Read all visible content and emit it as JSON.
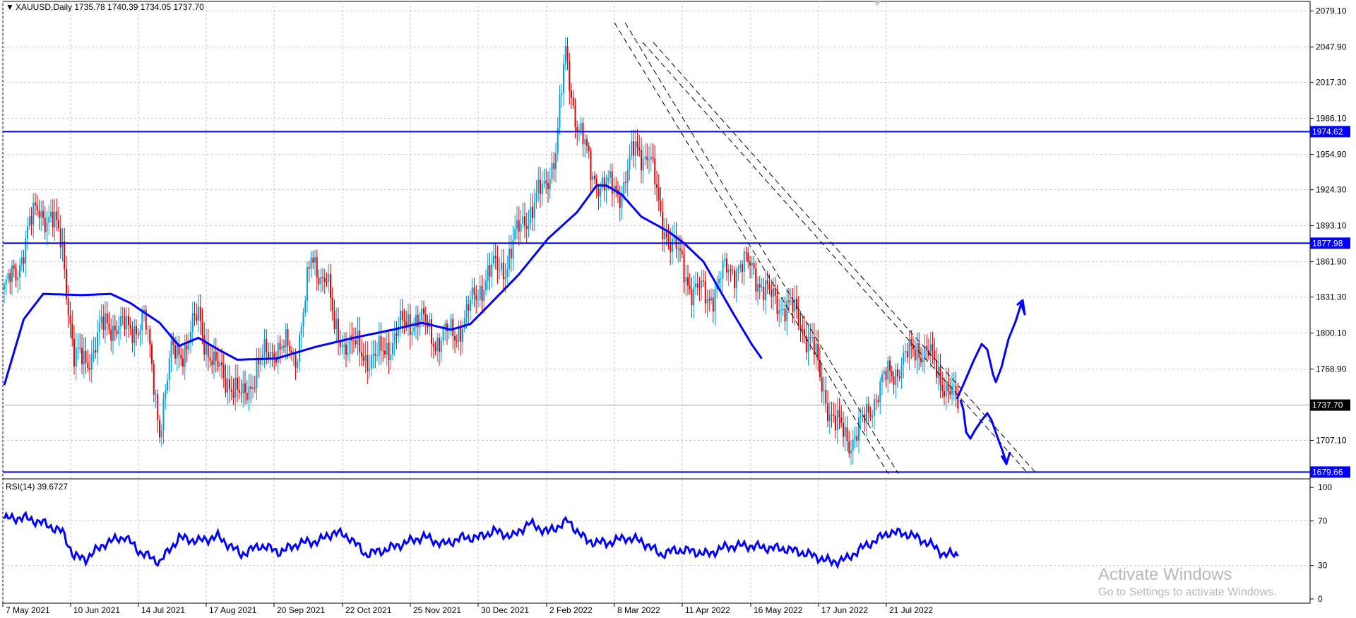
{
  "header": {
    "symbol_line": "XAUUSD,Daily  1735.78 1740.39 1734.05 1737.70",
    "menu_glyph": "▼"
  },
  "rsi": {
    "label": "RSI(14) 39.6727",
    "levels": [
      "100",
      "70",
      "30",
      "0"
    ]
  },
  "price_axis": {
    "ticks": [
      "2079.10",
      "2047.90",
      "2017.30",
      "1986.10",
      "1954.90",
      "1924.30",
      "1893.10",
      "1861.90",
      "1831.30",
      "1800.10",
      "1768.90",
      "1737.70",
      "1707.10",
      "1679.66"
    ]
  },
  "levels": {
    "resistance_1": "1974.62",
    "resistance_2": "1877.98",
    "current": "1737.70",
    "support": "1679.66"
  },
  "date_axis": [
    "7 May 2021",
    "10 Jun 2021",
    "14 Jul 2021",
    "17 Aug 2021",
    "20 Sep 2021",
    "22 Oct 2021",
    "25 Nov 2021",
    "30 Dec 2021",
    "2 Feb 2022",
    "8 Mar 2022",
    "11 Apr 2022",
    "16 May 2022",
    "17 Jun 2022",
    "21 Jul 2022"
  ],
  "watermark": {
    "line1": "Activate Windows",
    "line2": "Go to Settings to activate Windows."
  },
  "colors": {
    "line": "#0000ff",
    "bull": "#00a0e0",
    "bear": "#e00000",
    "grid": "#c8c8c8"
  },
  "chart_data": {
    "type": "candlestick",
    "symbol": "XAUUSD",
    "timeframe": "Daily",
    "ohlc_last": {
      "open": 1735.78,
      "high": 1740.39,
      "low": 1734.05,
      "close": 1737.7
    },
    "price_range": [
      1675,
      2085
    ],
    "horizontal_levels": [
      1974.62,
      1877.98,
      1679.66
    ],
    "current_price": 1737.7,
    "moving_average_anchors": [
      [
        0,
        1755
      ],
      [
        10,
        1812
      ],
      [
        20,
        1834
      ],
      [
        40,
        1833
      ],
      [
        55,
        1834
      ],
      [
        65,
        1826
      ],
      [
        80,
        1809
      ],
      [
        90,
        1789
      ],
      [
        100,
        1796
      ],
      [
        110,
        1786
      ],
      [
        120,
        1777
      ],
      [
        140,
        1778
      ],
      [
        160,
        1788
      ],
      [
        180,
        1796
      ],
      [
        200,
        1803
      ],
      [
        215,
        1809
      ],
      [
        230,
        1803
      ],
      [
        240,
        1808
      ],
      [
        250,
        1825
      ],
      [
        265,
        1851
      ],
      [
        280,
        1882
      ],
      [
        295,
        1905
      ],
      [
        305,
        1928
      ],
      [
        310,
        1928
      ],
      [
        318,
        1920
      ],
      [
        328,
        1901
      ],
      [
        342,
        1888
      ],
      [
        350,
        1878
      ],
      [
        360,
        1862
      ],
      [
        375,
        1818
      ],
      [
        385,
        1790
      ],
      [
        390,
        1778
      ]
    ],
    "price_anchors": [
      [
        0,
        1838
      ],
      [
        6,
        1850
      ],
      [
        12,
        1890
      ],
      [
        18,
        1907
      ],
      [
        24,
        1900
      ],
      [
        30,
        1875
      ],
      [
        36,
        1778
      ],
      [
        42,
        1775
      ],
      [
        50,
        1803
      ],
      [
        58,
        1810
      ],
      [
        64,
        1800
      ],
      [
        72,
        1815
      ],
      [
        80,
        1720
      ],
      [
        86,
        1780
      ],
      [
        94,
        1790
      ],
      [
        100,
        1815
      ],
      [
        108,
        1770
      ],
      [
        116,
        1760
      ],
      [
        122,
        1740
      ],
      [
        130,
        1770
      ],
      [
        140,
        1790
      ],
      [
        150,
        1780
      ],
      [
        158,
        1860
      ],
      [
        166,
        1850
      ],
      [
        170,
        1800
      ],
      [
        182,
        1785
      ],
      [
        192,
        1777
      ],
      [
        202,
        1800
      ],
      [
        212,
        1815
      ],
      [
        222,
        1795
      ],
      [
        232,
        1800
      ],
      [
        238,
        1815
      ],
      [
        248,
        1850
      ],
      [
        258,
        1860
      ],
      [
        268,
        1900
      ],
      [
        278,
        1925
      ],
      [
        284,
        1960
      ],
      [
        289,
        2040
      ],
      [
        294,
        1990
      ],
      [
        302,
        1940
      ],
      [
        310,
        1925
      ],
      [
        318,
        1925
      ],
      [
        325,
        1960
      ],
      [
        332,
        1955
      ],
      [
        338,
        1900
      ],
      [
        346,
        1870
      ],
      [
        354,
        1840
      ],
      [
        362,
        1830
      ],
      [
        370,
        1850
      ],
      [
        378,
        1860
      ],
      [
        386,
        1855
      ],
      [
        394,
        1830
      ],
      [
        402,
        1825
      ],
      [
        410,
        1810
      ],
      [
        416,
        1790
      ],
      [
        420,
        1760
      ],
      [
        428,
        1720
      ],
      [
        436,
        1708
      ],
      [
        442,
        1720
      ],
      [
        448,
        1745
      ],
      [
        456,
        1765
      ],
      [
        466,
        1780
      ],
      [
        470,
        1790
      ],
      [
        476,
        1780
      ],
      [
        484,
        1758
      ],
      [
        490,
        1738
      ]
    ],
    "rsi_anchors": [
      [
        0,
        72
      ],
      [
        10,
        73
      ],
      [
        20,
        68
      ],
      [
        30,
        60
      ],
      [
        36,
        38
      ],
      [
        42,
        36
      ],
      [
        52,
        50
      ],
      [
        62,
        56
      ],
      [
        70,
        42
      ],
      [
        80,
        33
      ],
      [
        90,
        55
      ],
      [
        100,
        52
      ],
      [
        110,
        56
      ],
      [
        122,
        40
      ],
      [
        132,
        48
      ],
      [
        142,
        42
      ],
      [
        152,
        50
      ],
      [
        162,
        52
      ],
      [
        170,
        60
      ],
      [
        178,
        55
      ],
      [
        186,
        40
      ],
      [
        196,
        44
      ],
      [
        206,
        50
      ],
      [
        216,
        56
      ],
      [
        226,
        49
      ],
      [
        236,
        55
      ],
      [
        244,
        55
      ],
      [
        252,
        61
      ],
      [
        262,
        56
      ],
      [
        270,
        68
      ],
      [
        280,
        60
      ],
      [
        290,
        70
      ],
      [
        300,
        52
      ],
      [
        310,
        50
      ],
      [
        320,
        55
      ],
      [
        328,
        52
      ],
      [
        338,
        40
      ],
      [
        346,
        44
      ],
      [
        354,
        43
      ],
      [
        362,
        40
      ],
      [
        372,
        47
      ],
      [
        382,
        48
      ],
      [
        392,
        46
      ],
      [
        402,
        45
      ],
      [
        410,
        42
      ],
      [
        418,
        38
      ],
      [
        426,
        33
      ],
      [
        434,
        36
      ],
      [
        440,
        44
      ],
      [
        446,
        50
      ],
      [
        456,
        60
      ],
      [
        466,
        58
      ],
      [
        476,
        50
      ],
      [
        484,
        40
      ],
      [
        490,
        40
      ]
    ],
    "rsi_levels": [
      70,
      30
    ],
    "x_labels": [
      "7 May 2021",
      "10 Jun 2021",
      "14 Jul 2021",
      "17 Aug 2021",
      "20 Sep 2021",
      "22 Oct 2021",
      "25 Nov 2021",
      "30 Dec 2021",
      "2 Feb 2022",
      "8 Mar 2022",
      "11 Apr 2022",
      "16 May 2022",
      "17 Jun 2022",
      "21 Jul 2022"
    ]
  }
}
